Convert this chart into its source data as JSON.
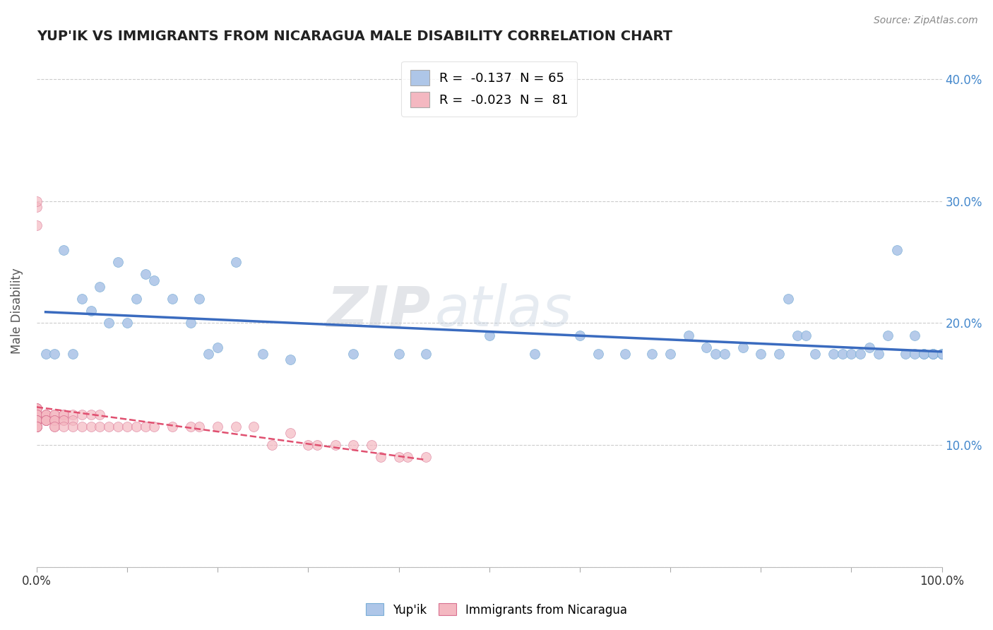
{
  "title": "YUP'IK VS IMMIGRANTS FROM NICARAGUA MALE DISABILITY CORRELATION CHART",
  "source": "Source: ZipAtlas.com",
  "xlabel": "",
  "ylabel": "Male Disability",
  "xlim": [
    0.0,
    1.0
  ],
  "ylim": [
    0.0,
    0.42
  ],
  "legend_entries": [
    {
      "label": "R =  -0.137  N = 65",
      "color": "#aec6e8"
    },
    {
      "label": "R =  -0.023  N =  81",
      "color": "#f4b8c1"
    }
  ],
  "series_yupik": {
    "scatter_color": "#aec6e8",
    "trend_color": "#3a6bbf",
    "x": [
      0.01,
      0.02,
      0.03,
      0.04,
      0.05,
      0.06,
      0.07,
      0.08,
      0.09,
      0.1,
      0.11,
      0.12,
      0.13,
      0.15,
      0.17,
      0.18,
      0.19,
      0.2,
      0.22,
      0.25,
      0.28,
      0.35,
      0.4,
      0.43,
      0.5,
      0.55,
      0.6,
      0.62,
      0.65,
      0.68,
      0.7,
      0.72,
      0.74,
      0.75,
      0.76,
      0.78,
      0.8,
      0.82,
      0.83,
      0.84,
      0.85,
      0.86,
      0.88,
      0.89,
      0.9,
      0.91,
      0.92,
      0.93,
      0.94,
      0.95,
      0.96,
      0.97,
      0.97,
      0.98,
      0.98,
      0.99,
      0.99,
      0.99,
      1.0,
      1.0,
      1.0,
      1.0,
      1.0,
      1.0,
      1.0
    ],
    "y": [
      0.175,
      0.175,
      0.26,
      0.175,
      0.22,
      0.21,
      0.23,
      0.2,
      0.25,
      0.2,
      0.22,
      0.24,
      0.235,
      0.22,
      0.2,
      0.22,
      0.175,
      0.18,
      0.25,
      0.175,
      0.17,
      0.175,
      0.175,
      0.175,
      0.19,
      0.175,
      0.19,
      0.175,
      0.175,
      0.175,
      0.175,
      0.19,
      0.18,
      0.175,
      0.175,
      0.18,
      0.175,
      0.175,
      0.22,
      0.19,
      0.19,
      0.175,
      0.175,
      0.175,
      0.175,
      0.175,
      0.18,
      0.175,
      0.19,
      0.26,
      0.175,
      0.175,
      0.19,
      0.175,
      0.175,
      0.175,
      0.175,
      0.175,
      0.175,
      0.175,
      0.175,
      0.175,
      0.175,
      0.175,
      0.175
    ]
  },
  "series_nicaragua": {
    "scatter_color": "#f4b8c1",
    "trend_color": "#e05070",
    "x": [
      0.0,
      0.0,
      0.0,
      0.0,
      0.0,
      0.0,
      0.0,
      0.0,
      0.0,
      0.0,
      0.0,
      0.0,
      0.0,
      0.0,
      0.0,
      0.0,
      0.0,
      0.0,
      0.0,
      0.0,
      0.0,
      0.0,
      0.0,
      0.0,
      0.0,
      0.0,
      0.0,
      0.01,
      0.01,
      0.01,
      0.01,
      0.01,
      0.01,
      0.01,
      0.01,
      0.01,
      0.01,
      0.02,
      0.02,
      0.02,
      0.02,
      0.02,
      0.02,
      0.02,
      0.03,
      0.03,
      0.03,
      0.03,
      0.03,
      0.04,
      0.04,
      0.04,
      0.05,
      0.05,
      0.06,
      0.06,
      0.07,
      0.07,
      0.08,
      0.09,
      0.1,
      0.11,
      0.12,
      0.13,
      0.15,
      0.17,
      0.18,
      0.2,
      0.22,
      0.24,
      0.26,
      0.28,
      0.3,
      0.31,
      0.33,
      0.35,
      0.37,
      0.38,
      0.4,
      0.41,
      0.43
    ],
    "y": [
      0.13,
      0.13,
      0.13,
      0.13,
      0.125,
      0.125,
      0.125,
      0.125,
      0.12,
      0.12,
      0.12,
      0.12,
      0.12,
      0.12,
      0.12,
      0.115,
      0.115,
      0.115,
      0.115,
      0.115,
      0.115,
      0.115,
      0.115,
      0.115,
      0.295,
      0.28,
      0.3,
      0.125,
      0.125,
      0.125,
      0.125,
      0.12,
      0.12,
      0.12,
      0.12,
      0.12,
      0.12,
      0.125,
      0.125,
      0.12,
      0.12,
      0.12,
      0.115,
      0.115,
      0.125,
      0.125,
      0.12,
      0.12,
      0.115,
      0.125,
      0.12,
      0.115,
      0.125,
      0.115,
      0.125,
      0.115,
      0.125,
      0.115,
      0.115,
      0.115,
      0.115,
      0.115,
      0.115,
      0.115,
      0.115,
      0.115,
      0.115,
      0.115,
      0.115,
      0.115,
      0.1,
      0.11,
      0.1,
      0.1,
      0.1,
      0.1,
      0.1,
      0.09,
      0.09,
      0.09,
      0.09
    ]
  },
  "background_color": "#ffffff",
  "grid_color": "#cccccc",
  "watermark_zip": "ZIP",
  "watermark_atlas": "atlas"
}
